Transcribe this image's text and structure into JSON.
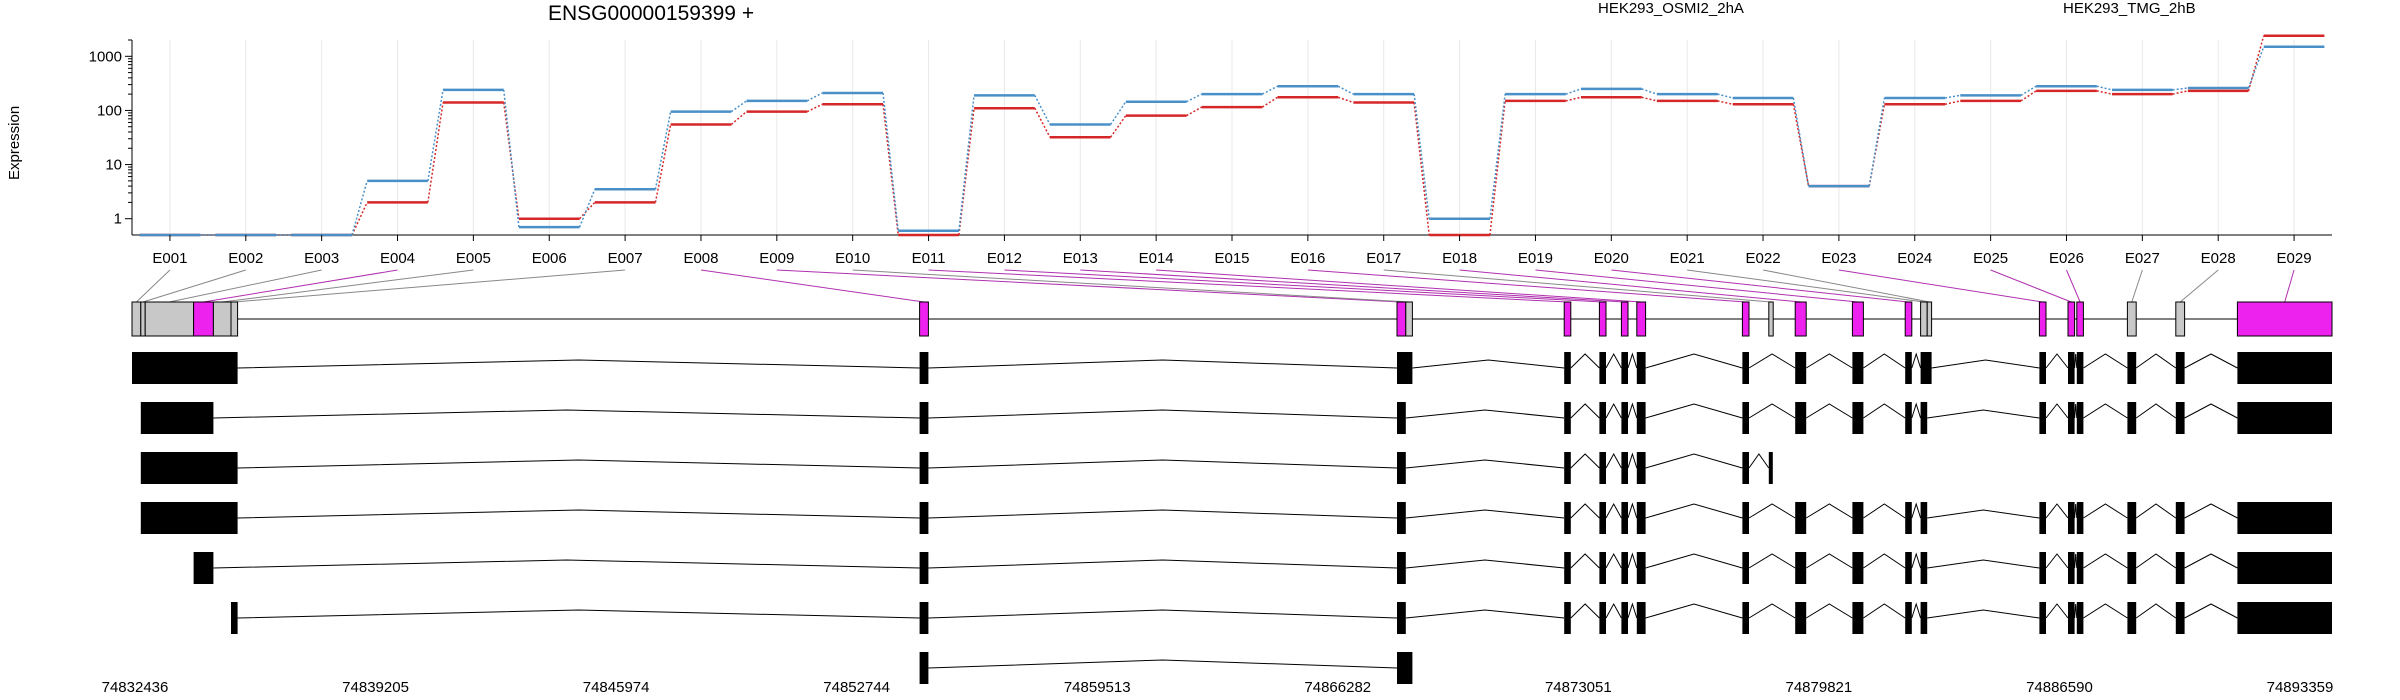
{
  "gene_title": "ENSG00000159399 +",
  "ylabel": "Expression",
  "colors": {
    "sample_a": "#d62728",
    "sample_b": "#4a90c8",
    "highlight": "#ee22ee",
    "unmarked": "#c8c8c8",
    "black": "#000000",
    "purple_line": "#b030b0"
  },
  "chart_data": {
    "type": "line",
    "title": "ENSG00000159399 +",
    "ylabel": "Expression",
    "yscale": "log",
    "ylim": [
      0.5,
      2000
    ],
    "yticks": [
      "1",
      "10",
      "100",
      "1000"
    ],
    "categories": [
      "E001",
      "E002",
      "E003",
      "E004",
      "E005",
      "E006",
      "E007",
      "E008",
      "E009",
      "E010",
      "E011",
      "E012",
      "E013",
      "E014",
      "E015",
      "E016",
      "E017",
      "E018",
      "E019",
      "E020",
      "E021",
      "E022",
      "E023",
      "E024",
      "E025",
      "E026",
      "E027",
      "E028",
      "E029"
    ],
    "series": [
      {
        "name": "HEK293_OSMI2_2hA",
        "color": "#d62728",
        "values": [
          0.5,
          0.5,
          0.5,
          2,
          140,
          1,
          2,
          55,
          95,
          130,
          0.5,
          110,
          32,
          80,
          115,
          175,
          140,
          0.5,
          150,
          175,
          150,
          130,
          4,
          130,
          150,
          230,
          200,
          230,
          2400
        ]
      },
      {
        "name": "HEK293_TMG_2hB",
        "color": "#4a90c8",
        "values": [
          0.5,
          0.5,
          0.5,
          5,
          240,
          0.7,
          3.5,
          95,
          150,
          210,
          0.6,
          190,
          55,
          145,
          200,
          280,
          200,
          1,
          200,
          250,
          200,
          170,
          4,
          170,
          190,
          280,
          240,
          260,
          1500
        ]
      }
    ]
  },
  "gene_model": {
    "coordinates": [
      "74832436",
      "74839205",
      "74845974",
      "74852744",
      "74859513",
      "74866282",
      "74873051",
      "74879821",
      "74886590",
      "74893359"
    ],
    "exon_bins": [
      {
        "s": 0.0,
        "e": 0.004,
        "hl": false
      },
      {
        "s": 0.004,
        "e": 0.006,
        "hl": false
      },
      {
        "s": 0.006,
        "e": 0.028,
        "hl": false
      },
      {
        "s": 0.028,
        "e": 0.037,
        "hl": true
      },
      {
        "s": 0.037,
        "e": 0.045,
        "hl": false
      },
      {
        "s": 0.045,
        "e": 0.048,
        "hl": false
      },
      {
        "s": 0.358,
        "e": 0.362,
        "hl": true
      },
      {
        "s": 0.575,
        "e": 0.579,
        "hl": true
      },
      {
        "s": 0.579,
        "e": 0.582,
        "hl": false
      },
      {
        "s": 0.651,
        "e": 0.654,
        "hl": true
      },
      {
        "s": 0.667,
        "e": 0.67,
        "hl": true
      },
      {
        "s": 0.677,
        "e": 0.68,
        "hl": true
      },
      {
        "s": 0.684,
        "e": 0.688,
        "hl": true
      },
      {
        "s": 0.732,
        "e": 0.735,
        "hl": true
      },
      {
        "s": 0.744,
        "e": 0.746,
        "hl": false
      },
      {
        "s": 0.756,
        "e": 0.761,
        "hl": true
      },
      {
        "s": 0.782,
        "e": 0.787,
        "hl": true
      },
      {
        "s": 0.806,
        "e": 0.809,
        "hl": true
      },
      {
        "s": 0.813,
        "e": 0.816,
        "hl": false
      },
      {
        "s": 0.816,
        "e": 0.818,
        "hl": false
      },
      {
        "s": 0.867,
        "e": 0.87,
        "hl": true
      },
      {
        "s": 0.88,
        "e": 0.883,
        "hl": true
      },
      {
        "s": 0.884,
        "e": 0.887,
        "hl": true
      },
      {
        "s": 0.907,
        "e": 0.911,
        "hl": false
      },
      {
        "s": 0.929,
        "e": 0.933,
        "hl": false
      },
      {
        "s": 0.957,
        "e": 1.0,
        "hl": true
      }
    ],
    "transcripts": [
      [
        [
          0,
          0.048
        ],
        [
          0.358,
          0.362
        ],
        [
          0.575,
          0.582
        ],
        [
          0.651,
          0.654
        ],
        [
          0.667,
          0.67
        ],
        [
          0.677,
          0.68
        ],
        [
          0.684,
          0.688
        ],
        [
          0.732,
          0.735
        ],
        [
          0.756,
          0.761
        ],
        [
          0.782,
          0.787
        ],
        [
          0.806,
          0.809
        ],
        [
          0.813,
          0.818
        ],
        [
          0.867,
          0.87
        ],
        [
          0.88,
          0.883
        ],
        [
          0.884,
          0.887
        ],
        [
          0.907,
          0.911
        ],
        [
          0.929,
          0.933
        ],
        [
          0.957,
          1.0
        ]
      ],
      [
        [
          0.004,
          0.037
        ],
        [
          0.358,
          0.362
        ],
        [
          0.575,
          0.579
        ],
        [
          0.651,
          0.654
        ],
        [
          0.667,
          0.67
        ],
        [
          0.677,
          0.68
        ],
        [
          0.684,
          0.688
        ],
        [
          0.732,
          0.735
        ],
        [
          0.756,
          0.761
        ],
        [
          0.782,
          0.787
        ],
        [
          0.806,
          0.809
        ],
        [
          0.813,
          0.816
        ],
        [
          0.867,
          0.87
        ],
        [
          0.88,
          0.883
        ],
        [
          0.884,
          0.887
        ],
        [
          0.907,
          0.911
        ],
        [
          0.929,
          0.933
        ],
        [
          0.957,
          1.0
        ]
      ],
      [
        [
          0.004,
          0.048
        ],
        [
          0.358,
          0.362
        ],
        [
          0.575,
          0.579
        ],
        [
          0.651,
          0.654
        ],
        [
          0.667,
          0.67
        ],
        [
          0.677,
          0.68
        ],
        [
          0.684,
          0.688
        ],
        [
          0.732,
          0.735
        ],
        [
          0.744,
          0.745
        ]
      ],
      [
        [
          0.004,
          0.048
        ],
        [
          0.358,
          0.362
        ],
        [
          0.575,
          0.579
        ],
        [
          0.651,
          0.654
        ],
        [
          0.667,
          0.67
        ],
        [
          0.677,
          0.68
        ],
        [
          0.684,
          0.688
        ],
        [
          0.732,
          0.735
        ],
        [
          0.756,
          0.761
        ],
        [
          0.782,
          0.787
        ],
        [
          0.806,
          0.809
        ],
        [
          0.813,
          0.816
        ],
        [
          0.867,
          0.87
        ],
        [
          0.88,
          0.883
        ],
        [
          0.884,
          0.887
        ],
        [
          0.907,
          0.911
        ],
        [
          0.929,
          0.933
        ],
        [
          0.957,
          1.0
        ]
      ],
      [
        [
          0.028,
          0.037
        ],
        [
          0.358,
          0.362
        ],
        [
          0.575,
          0.579
        ],
        [
          0.651,
          0.654
        ],
        [
          0.667,
          0.67
        ],
        [
          0.677,
          0.68
        ],
        [
          0.684,
          0.688
        ],
        [
          0.732,
          0.735
        ],
        [
          0.756,
          0.761
        ],
        [
          0.782,
          0.787
        ],
        [
          0.806,
          0.809
        ],
        [
          0.813,
          0.816
        ],
        [
          0.867,
          0.87
        ],
        [
          0.88,
          0.883
        ],
        [
          0.884,
          0.887
        ],
        [
          0.907,
          0.911
        ],
        [
          0.929,
          0.933
        ],
        [
          0.957,
          1.0
        ]
      ],
      [
        [
          0.045,
          0.048
        ],
        [
          0.358,
          0.362
        ],
        [
          0.575,
          0.579
        ],
        [
          0.651,
          0.654
        ],
        [
          0.667,
          0.67
        ],
        [
          0.677,
          0.68
        ],
        [
          0.684,
          0.688
        ],
        [
          0.732,
          0.735
        ],
        [
          0.756,
          0.761
        ],
        [
          0.782,
          0.787
        ],
        [
          0.806,
          0.809
        ],
        [
          0.813,
          0.816
        ],
        [
          0.867,
          0.87
        ],
        [
          0.88,
          0.883
        ],
        [
          0.884,
          0.887
        ],
        [
          0.907,
          0.911
        ],
        [
          0.929,
          0.933
        ],
        [
          0.957,
          1.0
        ]
      ],
      [
        [
          0.358,
          0.362
        ],
        [
          0.575,
          0.582
        ]
      ]
    ]
  }
}
